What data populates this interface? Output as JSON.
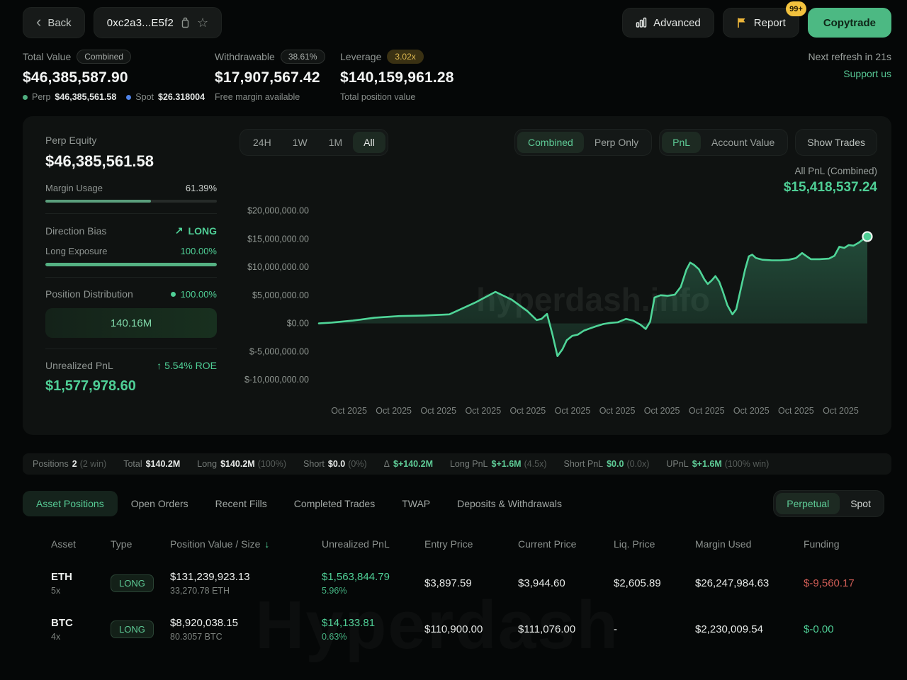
{
  "header": {
    "back_label": "Back",
    "address": "0xc2a3...E5f2",
    "advanced_label": "Advanced",
    "report_label": "Report",
    "report_badge": "99+",
    "copytrade_label": "Copytrade"
  },
  "stats": {
    "total_value": {
      "label": "Total Value",
      "badge": "Combined",
      "value": "$46,385,587.90",
      "perp_label": "Perp",
      "perp_value": "$46,385,561.58",
      "spot_label": "Spot",
      "spot_value": "$26.318004"
    },
    "withdrawable": {
      "label": "Withdrawable",
      "badge": "38.61%",
      "value": "$17,907,567.42",
      "sub": "Free margin available"
    },
    "leverage": {
      "label": "Leverage",
      "badge": "3.02x",
      "value": "$140,159,961.28",
      "sub": "Total position value"
    },
    "refresh": "Next refresh in 21s",
    "support": "Support us"
  },
  "panel": {
    "perp_equity_label": "Perp Equity",
    "perp_equity_value": "$46,385,561.58",
    "margin_usage_label": "Margin Usage",
    "margin_usage_value": "61.39%",
    "margin_usage_pct": 61.39,
    "direction_bias_label": "Direction Bias",
    "direction_bias_arrow": "↗",
    "direction_bias_value": "LONG",
    "long_exposure_label": "Long Exposure",
    "long_exposure_value": "100.00%",
    "long_exposure_pct": 100,
    "position_distribution_label": "Position Distribution",
    "position_distribution_pct": "100.00%",
    "position_distribution_value": "140.16M",
    "unrealized_pnl_label": "Unrealized PnL",
    "roe_arrow": "↑",
    "roe_value": "5.54% ROE",
    "unrealized_pnl_value": "$1,577,978.60"
  },
  "chart": {
    "timeframes": [
      "24H",
      "1W",
      "1M",
      "All"
    ],
    "timeframe_selected": "All",
    "mode_options": [
      "Combined",
      "Perp Only"
    ],
    "mode_selected": "Combined",
    "metric_options": [
      "PnL",
      "Account Value"
    ],
    "metric_selected": "PnL",
    "show_trades_label": "Show Trades",
    "all_pnl_label": "All PnL (Combined)",
    "all_pnl_value": "$15,418,537.24",
    "watermark": "hyperdash.info",
    "watermark_bottom": "Hyperdash"
  },
  "chart_data": {
    "type": "area",
    "title": "All PnL (Combined)",
    "series_name": "PnL",
    "unit": "USD millions",
    "ylim": [
      -12,
      21.7
    ],
    "grid": false,
    "legend": false,
    "line_color": "#4fd598",
    "fill_color": "#4fcf96",
    "last_value_label": "$15,418,537.24",
    "y_ticks": [
      {
        "v": 20,
        "label": "$20,000,000.00"
      },
      {
        "v": 15,
        "label": "$15,000,000.00"
      },
      {
        "v": 10,
        "label": "$10,000,000.00"
      },
      {
        "v": 5,
        "label": "$5,000,000.00"
      },
      {
        "v": 0,
        "label": "$0.00"
      },
      {
        "v": -5,
        "label": "$-5,000,000.00"
      },
      {
        "v": -10,
        "label": "$-10,000,000.00"
      }
    ],
    "x_labels": [
      "Oct 2025",
      "Oct 2025",
      "Oct 2025",
      "Oct 2025",
      "Oct 2025",
      "Oct 2025",
      "Oct 2025",
      "Oct 2025",
      "Oct 2025",
      "Oct 2025",
      "Oct 2025",
      "Oct 2025"
    ],
    "points": [
      [
        0.0,
        0.0
      ],
      [
        0.023,
        0.15
      ],
      [
        0.062,
        0.5
      ],
      [
        0.101,
        1.0
      ],
      [
        0.147,
        1.3
      ],
      [
        0.192,
        1.4
      ],
      [
        0.238,
        1.6
      ],
      [
        0.287,
        3.8
      ],
      [
        0.322,
        5.6
      ],
      [
        0.352,
        4.2
      ],
      [
        0.38,
        2.2
      ],
      [
        0.397,
        0.6
      ],
      [
        0.406,
        0.8
      ],
      [
        0.416,
        1.7
      ],
      [
        0.426,
        -2.0
      ],
      [
        0.435,
        -5.8
      ],
      [
        0.444,
        -4.6
      ],
      [
        0.452,
        -3.0
      ],
      [
        0.462,
        -2.2
      ],
      [
        0.472,
        -2.0
      ],
      [
        0.483,
        -1.3
      ],
      [
        0.494,
        -0.9
      ],
      [
        0.506,
        -0.5
      ],
      [
        0.519,
        -0.1
      ],
      [
        0.532,
        0.1
      ],
      [
        0.545,
        0.2
      ],
      [
        0.56,
        0.8
      ],
      [
        0.573,
        0.5
      ],
      [
        0.586,
        -0.2
      ],
      [
        0.596,
        -1.0
      ],
      [
        0.604,
        0.3
      ],
      [
        0.612,
        4.6
      ],
      [
        0.623,
        5.0
      ],
      [
        0.636,
        4.9
      ],
      [
        0.649,
        5.1
      ],
      [
        0.66,
        6.5
      ],
      [
        0.67,
        9.5
      ],
      [
        0.677,
        10.8
      ],
      [
        0.684,
        10.4
      ],
      [
        0.693,
        9.6
      ],
      [
        0.703,
        7.8
      ],
      [
        0.709,
        7.0
      ],
      [
        0.716,
        7.6
      ],
      [
        0.723,
        8.4
      ],
      [
        0.73,
        7.4
      ],
      [
        0.736,
        5.8
      ],
      [
        0.745,
        3.2
      ],
      [
        0.754,
        1.6
      ],
      [
        0.761,
        2.5
      ],
      [
        0.769,
        6.0
      ],
      [
        0.777,
        9.5
      ],
      [
        0.784,
        11.9
      ],
      [
        0.79,
        12.2
      ],
      [
        0.797,
        11.6
      ],
      [
        0.809,
        11.3
      ],
      [
        0.826,
        11.2
      ],
      [
        0.841,
        11.2
      ],
      [
        0.857,
        11.3
      ],
      [
        0.87,
        11.6
      ],
      [
        0.881,
        12.5
      ],
      [
        0.888,
        12.0
      ],
      [
        0.897,
        11.4
      ],
      [
        0.913,
        11.4
      ],
      [
        0.93,
        11.5
      ],
      [
        0.94,
        12.0
      ],
      [
        0.949,
        13.6
      ],
      [
        0.958,
        13.4
      ],
      [
        0.966,
        13.9
      ],
      [
        0.975,
        13.8
      ],
      [
        0.984,
        14.3
      ],
      [
        0.992,
        14.9
      ],
      [
        1.0,
        15.42
      ]
    ]
  },
  "summary": {
    "positions_label": "Positions",
    "positions_value": "2",
    "positions_extra": "(2 win)",
    "total_label": "Total",
    "total_value": "$140.2M",
    "long_label": "Long",
    "long_value": "$140.2M",
    "long_extra": "(100%)",
    "short_label": "Short",
    "short_value": "$0.0",
    "short_extra": "(0%)",
    "delta_label": "Δ",
    "delta_value": "$+140.2M",
    "long_pnl_label": "Long PnL",
    "long_pnl_value": "$+1.6M",
    "long_pnl_extra": "(4.5x)",
    "short_pnl_label": "Short PnL",
    "short_pnl_value": "$0.0",
    "short_pnl_extra": "(0.0x)",
    "upnl_label": "UPnL",
    "upnl_value": "$+1.6M",
    "upnl_extra": "(100% win)"
  },
  "tabs": {
    "items": [
      "Asset Positions",
      "Open Orders",
      "Recent Fills",
      "Completed Trades",
      "TWAP",
      "Deposits & Withdrawals"
    ],
    "selected": "Asset Positions",
    "market_options": [
      "Perpetual",
      "Spot"
    ],
    "market_selected": "Perpetual"
  },
  "table": {
    "headers": [
      "Asset",
      "Type",
      "Position Value / Size",
      "Unrealized PnL",
      "Entry Price",
      "Current Price",
      "Liq. Price",
      "Margin Used",
      "Funding"
    ],
    "sort_arrow": "↓",
    "rows": [
      {
        "asset": "ETH",
        "leverage": "5x",
        "type": "LONG",
        "position_value": "$131,239,923.13",
        "position_size": "33,270.78 ETH",
        "unrealized_pnl": "$1,563,844.79",
        "unrealized_pnl_pct": "5.96%",
        "entry_price": "$3,897.59",
        "current_price": "$3,944.60",
        "liq_price": "$2,605.89",
        "margin_used": "$26,247,984.63",
        "funding": "$-9,560.17"
      },
      {
        "asset": "BTC",
        "leverage": "4x",
        "type": "LONG",
        "position_value": "$8,920,038.15",
        "position_size": "80.3057 BTC",
        "unrealized_pnl": "$14,133.81",
        "unrealized_pnl_pct": "0.63%",
        "entry_price": "$110,900.00",
        "current_price": "$111,076.00",
        "liq_price": "-",
        "margin_used": "$2,230,009.54",
        "funding": "$-0.00"
      }
    ]
  }
}
